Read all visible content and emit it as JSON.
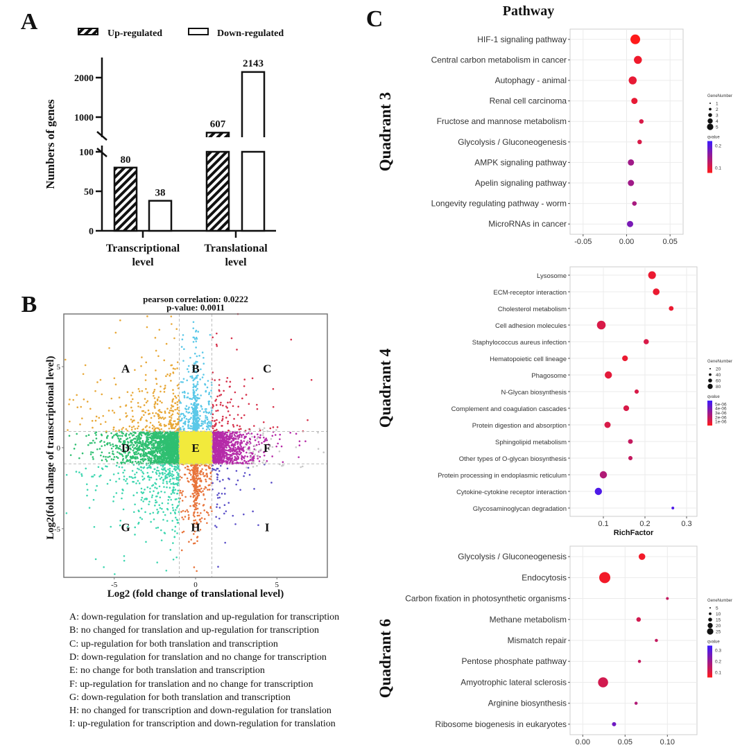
{
  "panels": {
    "a": "A",
    "b": "B",
    "c": "C"
  },
  "chart_data": [
    {
      "type": "bar",
      "panel": "A",
      "categories": [
        "Transcriptional level",
        "Translational level"
      ],
      "category_lines": [
        [
          "Transcriptional",
          "level"
        ],
        [
          "Translational",
          "level"
        ]
      ],
      "series": [
        {
          "name": "Up-regulated",
          "values": [
            80,
            607
          ]
        },
        {
          "name": "Down-regulated",
          "values": [
            38,
            2143
          ]
        }
      ],
      "value_labels": [
        [
          "80",
          "38"
        ],
        [
          "607",
          "2143"
        ]
      ],
      "ylabel": "Numbers of genes",
      "y_axis_broken": true,
      "ylim_lower": [
        0,
        100
      ],
      "ylim_upper": [
        490,
        2200
      ],
      "yticks": [
        "0",
        "50",
        "100",
        "1000",
        "2000"
      ],
      "legend": "top",
      "pattern_up": "hatched",
      "pattern_down": "open"
    },
    {
      "type": "scatter",
      "panel": "B",
      "title_lines": [
        "pearson correlation: 0.0222",
        "p-value: 0.0011"
      ],
      "xlabel": "Log2 (fold change of translational level)",
      "ylabel": "Log2(fold change of transcriptional level)",
      "xlim": [
        -8.1,
        8.1
      ],
      "ylim": [
        -8,
        8.25
      ],
      "xticks": [
        "-5",
        "0",
        "5"
      ],
      "yticks": [
        "-5",
        "0",
        "5"
      ],
      "thresholds": [
        -1,
        1
      ],
      "regions": [
        {
          "label": "A",
          "color": "#e8a838"
        },
        {
          "label": "B",
          "color": "#5bc8e8"
        },
        {
          "label": "C",
          "color": "#d6304a"
        },
        {
          "label": "D",
          "color": "#2fbf71"
        },
        {
          "label": "E",
          "color": "#f2ea3c"
        },
        {
          "label": "F",
          "color": "#b52aa8"
        },
        {
          "label": "G",
          "color": "#3ed6b0"
        },
        {
          "label": "H",
          "color": "#e8743b"
        },
        {
          "label": "I",
          "color": "#5a4fc8"
        }
      ],
      "other_color": "#c8c8c8",
      "grid": false
    },
    {
      "type": "scatter",
      "panel": "C",
      "subtype": "bubble",
      "title": "Pathway",
      "row_label": "Quadrant 3",
      "categories": [
        "HIF-1 signaling pathway",
        "Central carbon metabolism in cancer",
        "Autophagy - animal",
        "Renal cell carcinoma",
        "Fructose and mannose metabolism",
        "Glycolysis / Gluconeogenesis",
        "AMPK signaling pathway",
        "Apelin signaling pathway",
        "Longevity regulating pathway - worm",
        "MicroRNAs in cancer"
      ],
      "x": [
        0.01,
        0.013,
        0.007,
        0.009,
        0.017,
        0.015,
        0.005,
        0.005,
        0.009,
        0.004
      ],
      "gene_number": [
        5,
        4,
        4,
        3,
        2,
        2,
        3,
        3,
        2,
        3
      ],
      "qvalue": [
        0.03,
        0.05,
        0.06,
        0.06,
        0.08,
        0.08,
        0.15,
        0.15,
        0.14,
        0.2
      ],
      "xlim": [
        -0.065,
        0.065
      ],
      "xticks": [
        -0.05,
        0,
        0.05
      ],
      "xtick_labels": [
        "-0.05",
        "0.00",
        "0.05"
      ],
      "xlabel": "",
      "size_legend_title": "GeneNumber",
      "size_legend": [
        "1",
        "2",
        "3",
        "4",
        "5"
      ],
      "size_range": [
        1,
        5
      ],
      "color_legend_title": "qvalue",
      "color_legend": [
        "0.2",
        "0.1"
      ],
      "color_range": [
        0.03,
        0.28
      ],
      "grid": true,
      "color_low": "#ff1a1a",
      "color_high": "#3a1aff"
    },
    {
      "type": "scatter",
      "panel": "C",
      "subtype": "bubble",
      "row_label": "Quadrant 4",
      "categories": [
        "Lysosome",
        "ECM-receptor interaction",
        "Cholesterol metabolism",
        "Cell adhesion molecules",
        "Staphylococcus aureus infection",
        "Hematopoietic cell lineage",
        "Phagosome",
        "N-Glycan biosynthesis",
        "Complement and coagulation cascades",
        "Protein digestion and absorption",
        "Sphingolipid metabolism",
        "Other types of O-glycan biosynthesis",
        "Protein processing in endoplasmic reticulum",
        "Cytokine-cytokine receptor interaction",
        "Glycosaminoglycan degradation"
      ],
      "x": [
        0.217,
        0.227,
        0.263,
        0.095,
        0.203,
        0.152,
        0.112,
        0.18,
        0.155,
        0.11,
        0.165,
        0.165,
        0.1,
        0.088,
        0.267
      ],
      "gene_number": [
        60,
        50,
        30,
        70,
        35,
        40,
        55,
        25,
        40,
        45,
        30,
        25,
        55,
        55,
        10
      ],
      "qvalue": [
        1e-06,
        1e-06,
        1e-06,
        1.5e-06,
        1.5e-06,
        1e-06,
        1.2e-06,
        1.5e-06,
        1.5e-06,
        1.5e-06,
        2e-06,
        2e-06,
        2.5e-06,
        5e-06,
        5e-06
      ],
      "xlim": [
        0.02,
        0.325
      ],
      "xticks": [
        0.1,
        0.2,
        0.3
      ],
      "xtick_labels": [
        "0.1",
        "0.2",
        "0.3"
      ],
      "xlabel": "RichFactor",
      "size_legend_title": "GeneNumber",
      "size_legend": [
        "20",
        "40",
        "60",
        "80"
      ],
      "size_range": [
        10,
        80
      ],
      "color_legend_title": "qvalue",
      "color_legend": [
        "5e-06",
        "4e-06",
        "3e-06",
        "2e-06",
        "1e-06"
      ],
      "color_range": [
        5e-07,
        5.5e-06
      ],
      "grid": true,
      "color_low": "#ff1a1a",
      "color_high": "#3a1aff"
    },
    {
      "type": "scatter",
      "panel": "C",
      "subtype": "bubble",
      "row_label": "Quadrant 6",
      "categories": [
        "Glycolysis / Gluconeogenesis",
        "Endocytosis",
        "Carbon fixation in photosynthetic organisms",
        "Methane metabolism",
        "Mismatch repair",
        "Pentose phosphate pathway",
        "Amyotrophic lateral sclerosis",
        "Arginine biosynthesis",
        "Ribosome biogenesis in eukaryotes"
      ],
      "x": [
        0.07,
        0.026,
        0.1,
        0.066,
        0.087,
        0.067,
        0.024,
        0.063,
        0.037
      ],
      "gene_number": [
        15,
        28,
        4,
        9,
        5,
        5,
        25,
        5,
        8
      ],
      "qvalue": [
        0.05,
        0.05,
        0.12,
        0.1,
        0.12,
        0.12,
        0.1,
        0.15,
        0.25
      ],
      "xlim": [
        -0.015,
        0.135
      ],
      "xticks": [
        0,
        0.05,
        0.1
      ],
      "xtick_labels": [
        "0.00",
        "0.05",
        "0.10"
      ],
      "xlabel": "",
      "size_legend_title": "GeneNumber",
      "size_legend": [
        "5",
        "10",
        "15",
        "20",
        "25"
      ],
      "size_range": [
        4,
        28
      ],
      "color_legend_title": "qvalue",
      "color_legend": [
        "0.3",
        "0.2",
        "0.1"
      ],
      "color_range": [
        0.03,
        0.33
      ],
      "grid": true,
      "color_low": "#ff1a1a",
      "color_high": "#3a1aff"
    }
  ],
  "legend_b": [
    "A: down-regulation for translation and up-regulation for transcription",
    "B: no changed for translation and up-regulation for transcription",
    "C: up-regulation for both translation and transcription",
    "D: down-regulation for translation and no change for transcription",
    "E: no change for both translation and transcription",
    "F: up-regulation for translation and no change for transcription",
    "G: down-regulation for both translation and transcription",
    "H: no changed for transcription and down-regulation for translation",
    "I: up-regulation for transcription and down-regulation for translation"
  ]
}
